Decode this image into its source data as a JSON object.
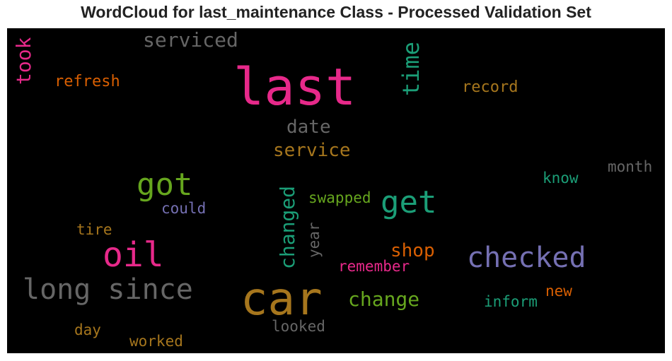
{
  "title": "WordCloud for last_maintenance Class - Processed Validation Set",
  "chart_data": {
    "type": "wordcloud",
    "background": "#000000",
    "words": [
      {
        "text": "last",
        "color": "#e7298a"
      },
      {
        "text": "car",
        "color": "#a6761d"
      },
      {
        "text": "long since",
        "color": "#666666"
      },
      {
        "text": "oil",
        "color": "#e7298a"
      },
      {
        "text": "checked",
        "color": "#7570b3"
      },
      {
        "text": "get",
        "color": "#1b9e77"
      },
      {
        "text": "got",
        "color": "#66a61e"
      },
      {
        "text": "time",
        "color": "#1b9e77"
      },
      {
        "text": "changed",
        "color": "#1b9e77"
      },
      {
        "text": "serviced",
        "color": "#666666"
      },
      {
        "text": "change",
        "color": "#66a61e"
      },
      {
        "text": "service",
        "color": "#a6761d"
      },
      {
        "text": "took",
        "color": "#e7298a"
      },
      {
        "text": "date",
        "color": "#666666"
      },
      {
        "text": "shop",
        "color": "#d95f02"
      },
      {
        "text": "refresh",
        "color": "#d95f02"
      },
      {
        "text": "record",
        "color": "#a6761d"
      },
      {
        "text": "month",
        "color": "#666666"
      },
      {
        "text": "know",
        "color": "#1b9e77"
      },
      {
        "text": "swapped",
        "color": "#66a61e"
      },
      {
        "text": "could",
        "color": "#7570b3"
      },
      {
        "text": "year",
        "color": "#666666"
      },
      {
        "text": "tire",
        "color": "#a6761d"
      },
      {
        "text": "remember",
        "color": "#e7298a"
      },
      {
        "text": "new",
        "color": "#d95f02"
      },
      {
        "text": "inform",
        "color": "#1b9e77"
      },
      {
        "text": "day",
        "color": "#a6761d"
      },
      {
        "text": "looked",
        "color": "#666666"
      },
      {
        "text": "worked",
        "color": "#a6761d"
      }
    ]
  }
}
